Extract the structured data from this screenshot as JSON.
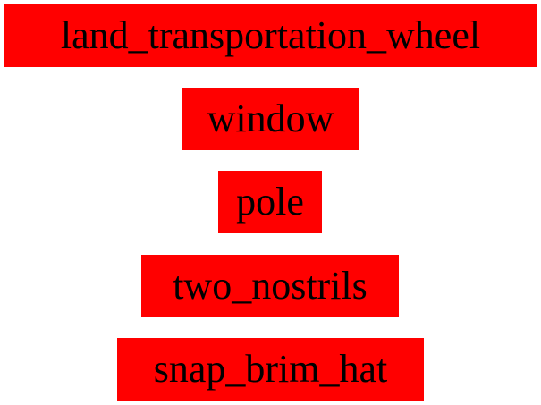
{
  "labels": [
    "land_transportation_wheel",
    "window",
    "pole",
    "two_nostrils",
    "snap_brim_hat"
  ],
  "colors": {
    "label_background": "#ff0000",
    "label_text": "#000000",
    "page_background": "#ffffff"
  }
}
